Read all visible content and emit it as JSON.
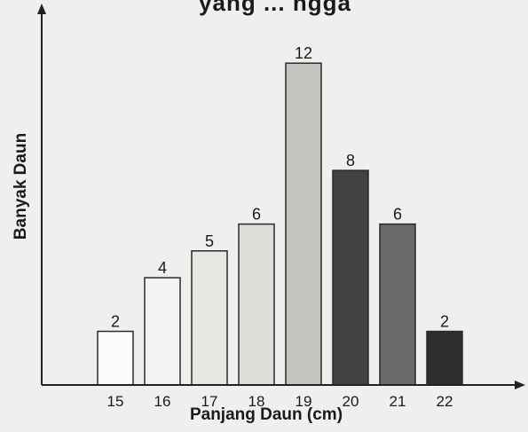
{
  "title_fragment": "...yang ... ...ngga",
  "chart_data": {
    "type": "bar",
    "categories": [
      "15",
      "16",
      "17",
      "18",
      "19",
      "20",
      "21",
      "22"
    ],
    "values": [
      2,
      4,
      5,
      6,
      12,
      8,
      6,
      2
    ],
    "bar_colors": [
      "#fbfbf9",
      "#f2f2f0",
      "#e6e6e3",
      "#dcdcd8",
      "#c4c4c0",
      "#424242",
      "#6a6a6a",
      "#2e2e2e"
    ],
    "xlabel": "Panjang Daun (cm)",
    "ylabel": "Banyak Daun",
    "ylim": [
      0,
      12.9
    ],
    "grid": false,
    "show_value_labels": true
  }
}
